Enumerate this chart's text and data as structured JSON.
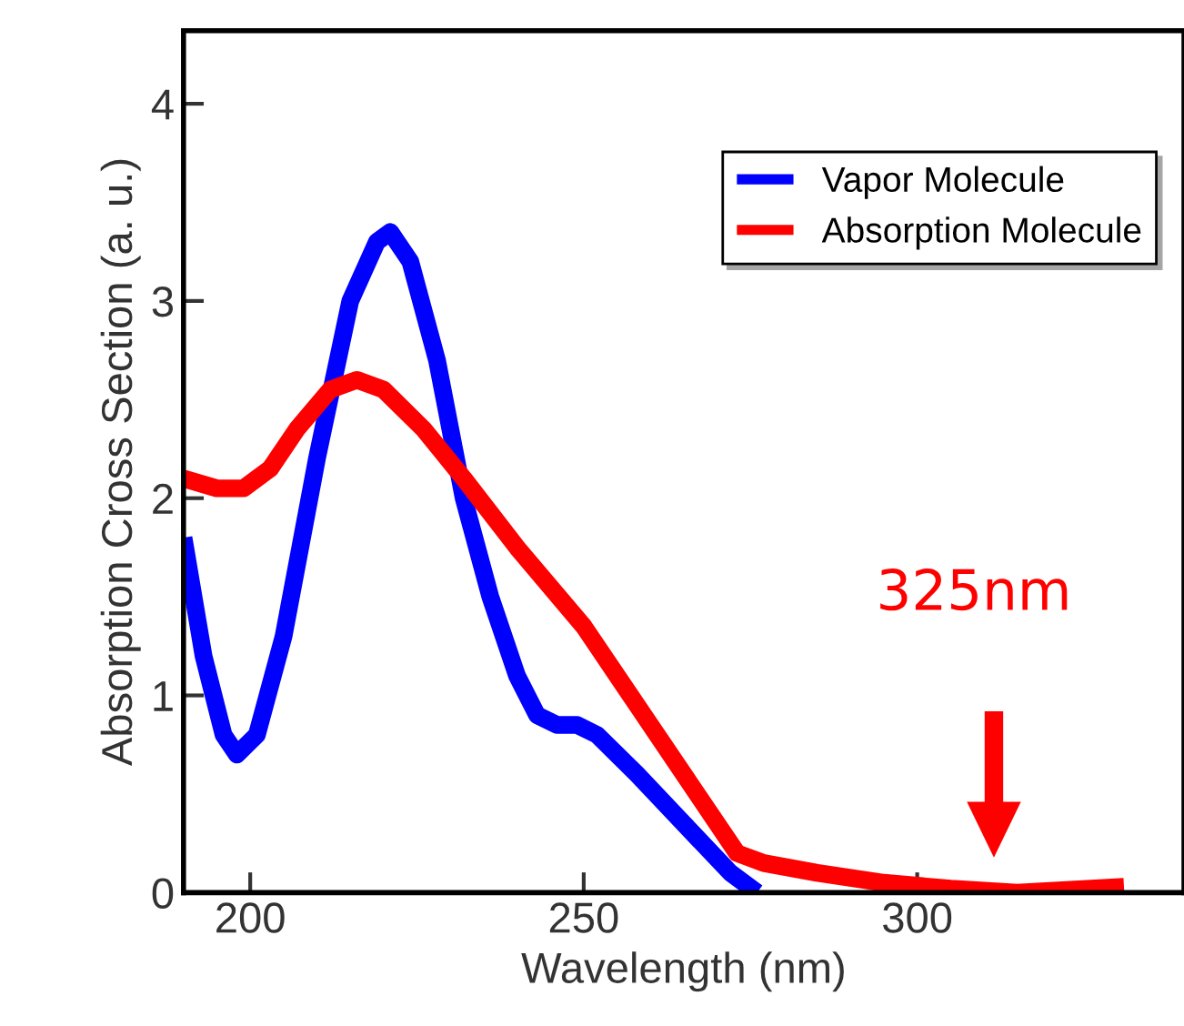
{
  "chart_data": {
    "type": "line",
    "xlabel": "Wavelength (nm)",
    "ylabel": "Absorption Cross Section (a. u.)",
    "xlim": [
      190,
      340
    ],
    "ylim": [
      0,
      4.37
    ],
    "xticks": [
      200,
      250,
      300
    ],
    "yticks": [
      0,
      1,
      2,
      3,
      4
    ],
    "grid": false,
    "legend": "top right",
    "marker": "none",
    "line_style": "solid",
    "series": [
      {
        "name": "Vapor Molecule",
        "color": "#0000ff",
        "x": [
          190,
          193,
          196,
          198,
          201,
          205,
          210,
          215,
          219,
          221,
          224,
          228,
          232,
          236,
          240,
          243,
          246,
          249,
          252,
          258,
          265,
          272,
          276
        ],
        "values": [
          1.8,
          1.2,
          0.8,
          0.7,
          0.8,
          1.3,
          2.2,
          3.0,
          3.3,
          3.35,
          3.2,
          2.7,
          2.0,
          1.5,
          1.1,
          0.9,
          0.85,
          0.85,
          0.8,
          0.6,
          0.35,
          0.1,
          0.0
        ]
      },
      {
        "name": "Absorption Molecule",
        "color": "#ff0000",
        "x": [
          190,
          195,
          199,
          203,
          207,
          212,
          216,
          220,
          226,
          232,
          240,
          250,
          258,
          266,
          273,
          277,
          285,
          295,
          305,
          315,
          331
        ],
        "values": [
          2.1,
          2.05,
          2.05,
          2.15,
          2.35,
          2.55,
          2.6,
          2.55,
          2.35,
          2.1,
          1.75,
          1.35,
          0.95,
          0.55,
          0.2,
          0.15,
          0.1,
          0.05,
          0.02,
          0.0,
          0.03
        ]
      }
    ],
    "annotations": [
      "325nm"
    ]
  }
}
